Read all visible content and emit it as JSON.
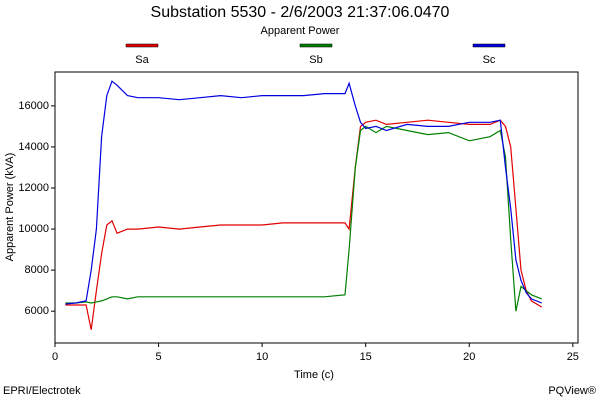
{
  "chart_data": {
    "type": "line",
    "title": "Substation 5530 - 2/6/2003 21:37:06.0470",
    "subtitle": "Apparent Power",
    "x_label": "Time (c)",
    "y_label": "Apparent Power (kVA)",
    "source": "EPRI/Electrotek",
    "credit": "PQView®",
    "x": [
      0.5,
      1.0,
      1.5,
      1.75,
      2.0,
      2.25,
      2.5,
      2.75,
      3.0,
      3.5,
      4.0,
      5.0,
      6.0,
      7.0,
      8.0,
      9.0,
      10.0,
      11.0,
      12.0,
      13.0,
      14.0,
      14.2,
      14.5,
      14.75,
      15.0,
      15.5,
      16.0,
      17.0,
      18.0,
      19.0,
      20.0,
      21.0,
      21.5,
      21.75,
      22.0,
      22.25,
      22.5,
      22.75,
      23.0,
      23.5
    ],
    "series": [
      {
        "name": "Sa",
        "color": "#e00000",
        "values": [
          6300,
          6300,
          6300,
          5100,
          7000,
          8800,
          10200,
          10400,
          9800,
          10000,
          10000,
          10100,
          10000,
          10100,
          10200,
          10200,
          10200,
          10300,
          10300,
          10300,
          10300,
          10000,
          13000,
          15000,
          15200,
          15300,
          15100,
          15200,
          15300,
          15200,
          15100,
          15100,
          15300,
          15000,
          14000,
          11000,
          8000,
          7000,
          6500,
          6200
        ]
      },
      {
        "name": "Sb",
        "color": "#008000",
        "values": [
          6400,
          6400,
          6450,
          6400,
          6450,
          6500,
          6600,
          6700,
          6700,
          6600,
          6700,
          6700,
          6700,
          6700,
          6700,
          6700,
          6700,
          6700,
          6700,
          6700,
          6800,
          9000,
          13000,
          14800,
          15000,
          14700,
          15000,
          14800,
          14600,
          14700,
          14300,
          14500,
          14800,
          13500,
          9500,
          6000,
          7200,
          7000,
          6800,
          6600
        ]
      },
      {
        "name": "Sc",
        "color": "#0000e0",
        "values": [
          6350,
          6400,
          6500,
          8000,
          10000,
          14500,
          16500,
          17200,
          17000,
          16500,
          16400,
          16400,
          16300,
          16400,
          16500,
          16400,
          16500,
          16500,
          16500,
          16600,
          16600,
          17100,
          16000,
          15200,
          14900,
          15000,
          14800,
          15100,
          15000,
          15000,
          15200,
          15200,
          15300,
          13000,
          11000,
          8500,
          7500,
          6900,
          6600,
          6400
        ]
      }
    ],
    "xlim": [
      0,
      25.25
    ],
    "xticks": [
      0,
      5,
      10,
      15,
      20,
      25
    ],
    "ylim": [
      4450,
      17650
    ],
    "yticks": [
      6000,
      8000,
      10000,
      12000,
      14000,
      16000
    ],
    "legend": "top"
  }
}
